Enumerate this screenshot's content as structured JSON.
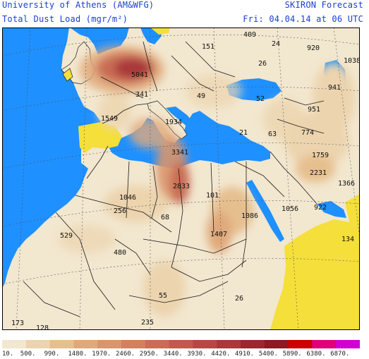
{
  "header": {
    "source": "University of Athens (AM&WFG)",
    "variable": "Total Dust Load (mgr/m²)",
    "model": "SKIRON Forecast",
    "valid_time": "Fri: 04.04.14 at 06 UTC"
  },
  "colors": {
    "sea": "#1e90ff",
    "land": "#f2e7cf",
    "no_dust_land": "#f5df3a",
    "border": "#1a1a1a",
    "title_text": "#1a3fd0"
  },
  "map_values": [
    "409",
    "24",
    "920",
    "1038",
    "151",
    "26",
    "5041",
    "941",
    "341",
    "49",
    "52",
    "951",
    "1549",
    "1934",
    "21",
    "63",
    "774",
    "3341",
    "1759",
    "2231",
    "1366",
    "2833",
    "101",
    "1046",
    "256",
    "68",
    "1086",
    "1056",
    "922",
    "529",
    "1407",
    "134",
    "480",
    "55",
    "26",
    "235",
    "173",
    "128"
  ],
  "legend": {
    "labels": [
      "10.",
      "500.",
      "990.",
      "1480.",
      "1970.",
      "2460.",
      "2950.",
      "3440.",
      "3930.",
      "4420.",
      "4910.",
      "5400.",
      "5890.",
      "6380.",
      "6870."
    ],
    "colors": [
      "#f2e7cf",
      "#ecd4ae",
      "#e6bf8f",
      "#e0a97a",
      "#d9956b",
      "#d2815f",
      "#c96d55",
      "#bf5a4c",
      "#b54845",
      "#a9383a",
      "#9a2830",
      "#8c1a22",
      "#cc0000",
      "#e0007a",
      "#d000d0"
    ]
  }
}
